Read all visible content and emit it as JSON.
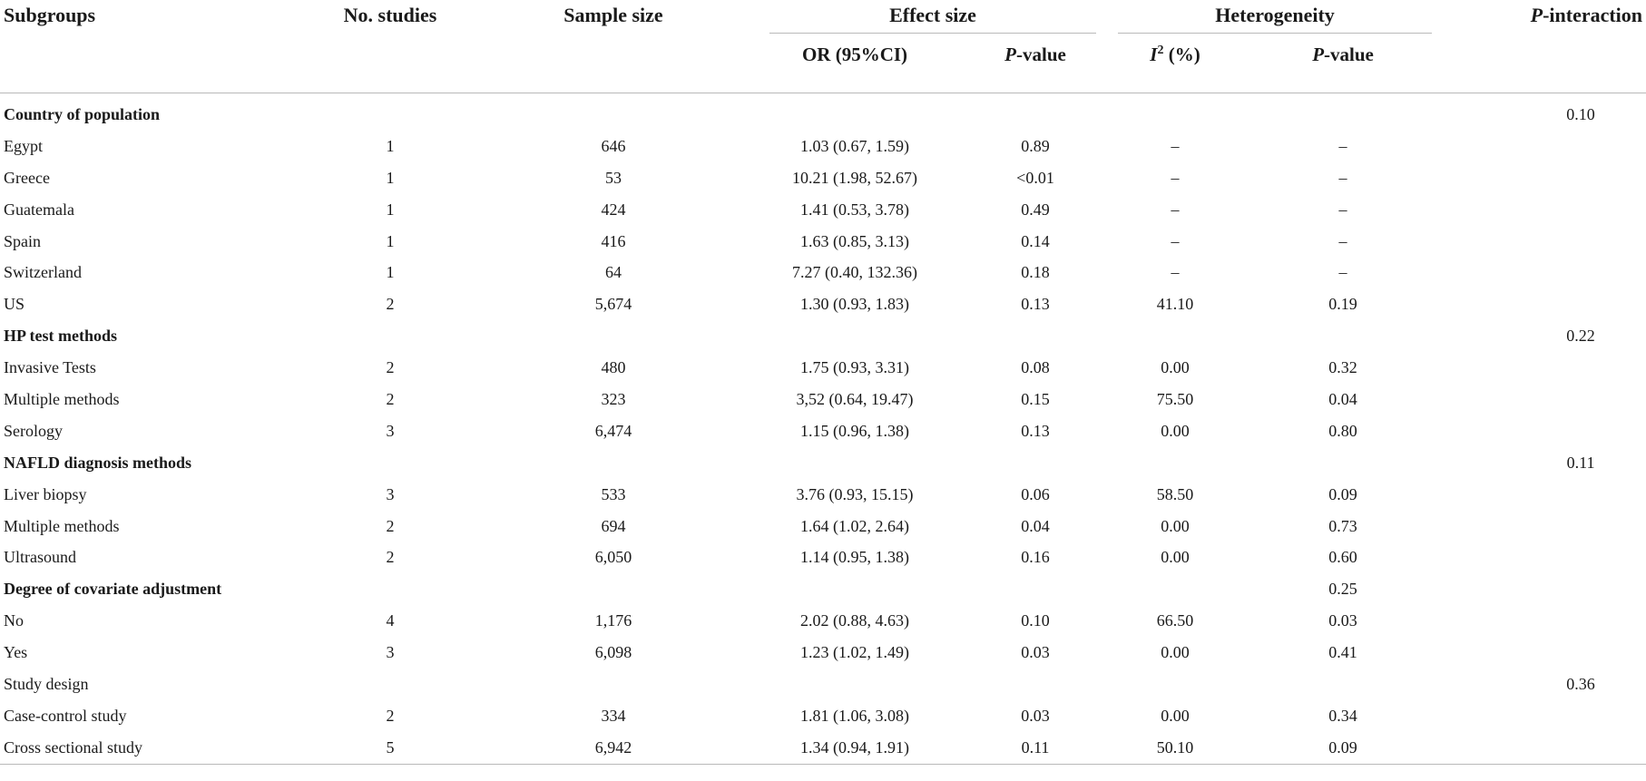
{
  "header": {
    "subgroups": "Subgroups",
    "no_studies": "No. studies",
    "sample_size": "Sample size",
    "effect_size": "Effect size",
    "heterogeneity": "Heterogeneity",
    "p_interaction_italic": "P",
    "p_interaction_rest": "-interaction",
    "or_ci": "OR (95%CI)",
    "p_value_italic": "P",
    "p_value_rest": "-value",
    "i2_letter": "I",
    "i2_sup": "2",
    "i2_rest": " (%)",
    "het_p_italic": "P",
    "het_p_rest": "-value"
  },
  "rows": [
    {
      "type": "group",
      "label": "Country of population",
      "pint": "0.10",
      "het_p": ""
    },
    {
      "type": "row",
      "label": "Egypt",
      "n": "1",
      "sample": "646",
      "or": "1.03 (0.67, 1.59)",
      "p": "0.89",
      "i2": "–",
      "het_p": "–",
      "pint": ""
    },
    {
      "type": "row",
      "label": "Greece",
      "n": "1",
      "sample": "53",
      "or": "10.21 (1.98, 52.67)",
      "p": "<0.01",
      "i2": "–",
      "het_p": "–",
      "pint": ""
    },
    {
      "type": "row",
      "label": "Guatemala",
      "n": "1",
      "sample": "424",
      "or": "1.41 (0.53, 3.78)",
      "p": "0.49",
      "i2": "–",
      "het_p": "–",
      "pint": ""
    },
    {
      "type": "row",
      "label": "Spain",
      "n": "1",
      "sample": "416",
      "or": "1.63 (0.85, 3.13)",
      "p": "0.14",
      "i2": "–",
      "het_p": "–",
      "pint": ""
    },
    {
      "type": "row",
      "label": "Switzerland",
      "n": "1",
      "sample": "64",
      "or": "7.27 (0.40, 132.36)",
      "p": "0.18",
      "i2": "–",
      "het_p": "–",
      "pint": ""
    },
    {
      "type": "row",
      "label": "US",
      "n": "2",
      "sample": "5,674",
      "or": "1.30 (0.93, 1.83)",
      "p": "0.13",
      "i2": "41.10",
      "het_p": "0.19",
      "pint": ""
    },
    {
      "type": "group",
      "label": "HP test methods",
      "pint": "0.22",
      "het_p": ""
    },
    {
      "type": "row",
      "label": "Invasive Tests",
      "n": "2",
      "sample": "480",
      "or": "1.75 (0.93, 3.31)",
      "p": "0.08",
      "i2": "0.00",
      "het_p": "0.32",
      "pint": ""
    },
    {
      "type": "row",
      "label": "Multiple methods",
      "n": "2",
      "sample": "323",
      "or": "3,52 (0.64, 19.47)",
      "p": "0.15",
      "i2": "75.50",
      "het_p": "0.04",
      "pint": ""
    },
    {
      "type": "row",
      "label": "Serology",
      "n": "3",
      "sample": "6,474",
      "or": "1.15 (0.96, 1.38)",
      "p": "0.13",
      "i2": "0.00",
      "het_p": "0.80",
      "pint": ""
    },
    {
      "type": "group",
      "label": "NAFLD diagnosis methods",
      "pint": "0.11",
      "het_p": ""
    },
    {
      "type": "row",
      "label": "Liver biopsy",
      "n": "3",
      "sample": "533",
      "or": "3.76 (0.93, 15.15)",
      "p": "0.06",
      "i2": "58.50",
      "het_p": "0.09",
      "pint": ""
    },
    {
      "type": "row",
      "label": "Multiple methods",
      "n": "2",
      "sample": "694",
      "or": "1.64 (1.02, 2.64)",
      "p": "0.04",
      "i2": "0.00",
      "het_p": "0.73",
      "pint": ""
    },
    {
      "type": "row",
      "label": "Ultrasound",
      "n": "2",
      "sample": "6,050",
      "or": "1.14 (0.95, 1.38)",
      "p": "0.16",
      "i2": "0.00",
      "het_p": "0.60",
      "pint": ""
    },
    {
      "type": "group",
      "label": "Degree of covariate adjustment",
      "pint": "",
      "het_p": "0.25"
    },
    {
      "type": "row",
      "label": "No",
      "n": "4",
      "sample": "1,176",
      "or": "2.02 (0.88, 4.63)",
      "p": "0.10",
      "i2": "66.50",
      "het_p": "0.03",
      "pint": ""
    },
    {
      "type": "row",
      "label": "Yes",
      "n": "3",
      "sample": "6,098",
      "or": "1.23 (1.02, 1.49)",
      "p": "0.03",
      "i2": "0.00",
      "het_p": "0.41",
      "pint": ""
    },
    {
      "type": "group-plain",
      "label": "Study design",
      "pint": "0.36",
      "het_p": ""
    },
    {
      "type": "row",
      "label": "Case-control study",
      "n": "2",
      "sample": "334",
      "or": "1.81 (1.06, 3.08)",
      "p": "0.03",
      "i2": "0.00",
      "het_p": "0.34",
      "pint": ""
    },
    {
      "type": "row",
      "label": "Cross sectional study",
      "n": "5",
      "sample": "6,942",
      "or": "1.34 (0.94, 1.91)",
      "p": "0.11",
      "i2": "50.10",
      "het_p": "0.09",
      "pint": ""
    }
  ]
}
